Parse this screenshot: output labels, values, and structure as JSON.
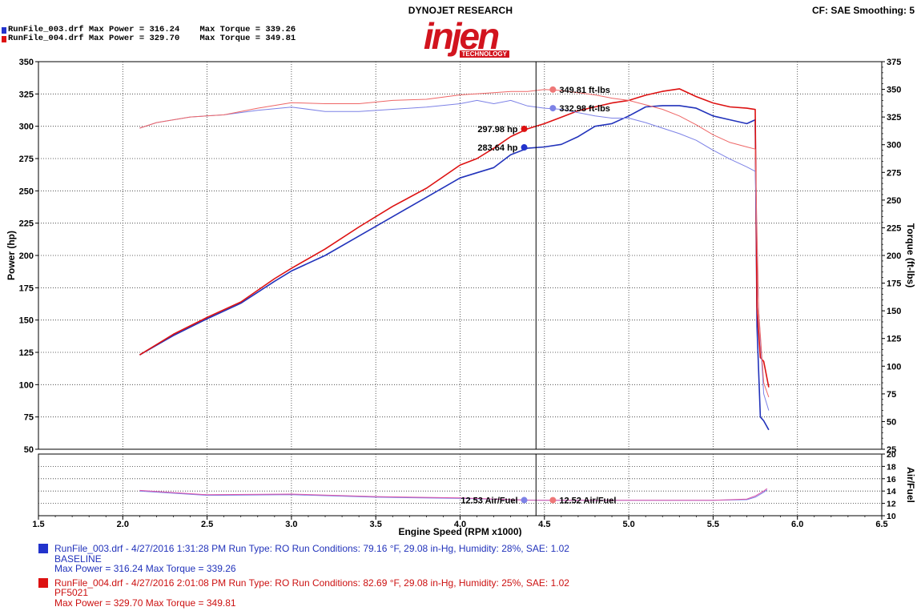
{
  "header": {
    "run1": {
      "name": "RunFile_003.drf",
      "max_power_label": "Max Power = 316.24",
      "max_torque_label": "Max Torque = 339.26",
      "color": "#2233cc"
    },
    "run2": {
      "name": "RunFile_004.drf",
      "max_power_label": "Max Power = 329.70",
      "max_torque_label": "Max Torque = 349.81",
      "color": "#dd1111"
    },
    "brand_top": "DYNOJET RESEARCH",
    "logo_word": "injen",
    "logo_sub": "TECHNOLOGY",
    "cf": "CF: SAE  Smoothing: 5"
  },
  "chart_data": {
    "type": "line",
    "xlabel": "Engine Speed (RPM x1000)",
    "xlim": [
      1.5,
      6.5
    ],
    "x_ticks": [
      "1.5",
      "2.0",
      "2.5",
      "3.0",
      "3.5",
      "4.0",
      "4.5",
      "5.0",
      "5.5",
      "6.0",
      "6.5"
    ],
    "ylabel_left": "Power (hp)",
    "ylim_left": [
      50,
      350
    ],
    "y_ticks_left": [
      "50",
      "75",
      "100",
      "125",
      "150",
      "175",
      "200",
      "225",
      "250",
      "275",
      "300",
      "325",
      "350"
    ],
    "ylabel_right": "Torque (ft-lbs)",
    "ylim_right": [
      25,
      375
    ],
    "y_ticks_right": [
      "25",
      "50",
      "75",
      "100",
      "125",
      "150",
      "175",
      "200",
      "225",
      "250",
      "275",
      "300",
      "325",
      "350",
      "375"
    ],
    "ylabel_afr": "Air/Fuel",
    "ylim_afr": [
      10,
      20
    ],
    "y_ticks_afr": [
      "10",
      "12",
      "14",
      "16",
      "18",
      "20"
    ],
    "cursor_x": 4.45,
    "grid": true,
    "series": [
      {
        "kind": "power",
        "axis": "left",
        "color": "#2233bb",
        "width": 1.6,
        "x": [
          2.1,
          2.3,
          2.5,
          2.7,
          2.9,
          3.0,
          3.2,
          3.4,
          3.6,
          3.8,
          4.0,
          4.1,
          4.2,
          4.3,
          4.4,
          4.5,
          4.6,
          4.7,
          4.8,
          4.9,
          5.0,
          5.1,
          5.2,
          5.3,
          5.4,
          5.5,
          5.6,
          5.7,
          5.75,
          5.76,
          5.78,
          5.8,
          5.83
        ],
        "y": [
          123,
          138,
          151,
          163,
          180,
          188,
          200,
          215,
          230,
          245,
          260,
          264,
          268,
          278,
          283,
          284,
          286,
          292,
          300,
          302,
          308,
          315,
          316,
          316,
          314,
          308,
          305,
          302,
          305,
          145,
          75,
          72,
          65
        ]
      },
      {
        "kind": "power",
        "axis": "left",
        "color": "#dd1111",
        "width": 1.6,
        "x": [
          2.1,
          2.3,
          2.5,
          2.7,
          2.9,
          3.0,
          3.2,
          3.4,
          3.6,
          3.8,
          4.0,
          4.1,
          4.2,
          4.3,
          4.4,
          4.5,
          4.6,
          4.7,
          4.8,
          4.9,
          5.0,
          5.1,
          5.2,
          5.3,
          5.4,
          5.5,
          5.6,
          5.7,
          5.75,
          5.76,
          5.78,
          5.8,
          5.83
        ],
        "y": [
          123,
          139,
          152,
          164,
          182,
          190,
          205,
          222,
          238,
          252,
          270,
          275,
          283,
          292,
          298,
          302,
          307,
          312,
          315,
          318,
          320,
          324,
          327,
          329,
          323,
          318,
          315,
          314,
          313,
          160,
          121,
          118,
          98
        ]
      },
      {
        "kind": "torque",
        "axis": "right",
        "color": "#7d82e6",
        "width": 1.0,
        "x": [
          2.1,
          2.2,
          2.4,
          2.6,
          2.8,
          3.0,
          3.2,
          3.4,
          3.6,
          3.8,
          4.0,
          4.1,
          4.2,
          4.3,
          4.4,
          4.5,
          4.6,
          4.7,
          4.8,
          4.9,
          5.0,
          5.1,
          5.2,
          5.3,
          5.4,
          5.5,
          5.6,
          5.7,
          5.75,
          5.77,
          5.8,
          5.83
        ],
        "y": [
          315,
          320,
          325,
          327,
          331,
          334,
          330,
          330,
          332,
          334,
          337,
          340,
          337,
          340,
          335,
          333,
          332,
          329,
          326,
          324,
          324,
          320,
          315,
          310,
          304,
          295,
          287,
          280,
          276,
          150,
          75,
          60
        ]
      },
      {
        "kind": "torque",
        "axis": "right",
        "color": "#ee6666",
        "width": 1.0,
        "x": [
          2.1,
          2.2,
          2.4,
          2.6,
          2.8,
          3.0,
          3.2,
          3.4,
          3.6,
          3.8,
          4.0,
          4.1,
          4.2,
          4.3,
          4.4,
          4.5,
          4.6,
          4.7,
          4.8,
          4.9,
          5.0,
          5.1,
          5.2,
          5.3,
          5.4,
          5.5,
          5.6,
          5.7,
          5.75,
          5.77,
          5.8,
          5.83
        ],
        "y": [
          315,
          320,
          325,
          327,
          333,
          338,
          337,
          337,
          340,
          341,
          345,
          346,
          347,
          348,
          348,
          349.8,
          349,
          347,
          345,
          342,
          340,
          336,
          332,
          326,
          318,
          309,
          302,
          298,
          296,
          150,
          85,
          72
        ]
      },
      {
        "kind": "afr",
        "axis": "afr",
        "color": "#7d82e6",
        "width": 1.0,
        "x": [
          2.1,
          2.5,
          3.0,
          3.5,
          4.0,
          4.4,
          4.5,
          5.0,
          5.5,
          5.7,
          5.75,
          5.8,
          5.82
        ],
        "y": [
          14.0,
          13.3,
          13.4,
          13.0,
          12.8,
          12.53,
          12.5,
          12.5,
          12.5,
          12.6,
          13.0,
          13.8,
          14.2
        ]
      },
      {
        "kind": "afr",
        "axis": "afr",
        "color": "#dd55aa",
        "width": 1.0,
        "x": [
          2.1,
          2.5,
          3.0,
          3.5,
          4.0,
          4.4,
          4.5,
          5.0,
          5.5,
          5.7,
          5.75,
          5.8,
          5.82
        ],
        "y": [
          14.1,
          13.4,
          13.5,
          13.1,
          12.9,
          12.52,
          12.5,
          12.5,
          12.5,
          12.7,
          13.2,
          14.0,
          14.4
        ]
      }
    ],
    "markers": [
      {
        "axis": "right",
        "x": 4.55,
        "y": 349.81,
        "color": "#ee7777",
        "label": "349.81 ft-lbs",
        "side": "right"
      },
      {
        "axis": "right",
        "x": 4.55,
        "y": 332.98,
        "color": "#7d82e6",
        "label": "332.98 ft-lbs",
        "side": "right"
      },
      {
        "axis": "left",
        "x": 4.38,
        "y": 297.98,
        "color": "#dd1111",
        "label": "297.98 hp",
        "side": "left"
      },
      {
        "axis": "left",
        "x": 4.38,
        "y": 283.64,
        "color": "#2233cc",
        "label": "283.64 hp",
        "side": "left"
      },
      {
        "axis": "afr",
        "x": 4.38,
        "y": 12.53,
        "color": "#7d82e6",
        "label": "12.53 Air/Fuel",
        "side": "left"
      },
      {
        "axis": "afr",
        "x": 4.55,
        "y": 12.52,
        "color": "#ee7777",
        "label": "12.52 Air/Fuel",
        "side": "right"
      }
    ]
  },
  "legend": [
    {
      "color": "#2233cc",
      "cls": "lg-blue",
      "line1": "RunFile_003.drf - 4/27/2016 1:31:28 PM  Run Type: RO  Run Conditions: 79.16 °F, 29.08 in-Hg,  Humidity:  28%, SAE: 1.02",
      "line2": "BASELINE",
      "line3": "Max Power = 316.24  Max Torque = 339.26"
    },
    {
      "color": "#dd1111",
      "cls": "lg-red",
      "line1": "RunFile_004.drf - 4/27/2016 2:01:08 PM  Run Type: RO  Run Conditions: 82.69 °F, 29.08 in-Hg,  Humidity:  25%, SAE: 1.02",
      "line2": "PF5021",
      "line3": "Max Power = 329.70  Max Torque = 349.81"
    }
  ]
}
